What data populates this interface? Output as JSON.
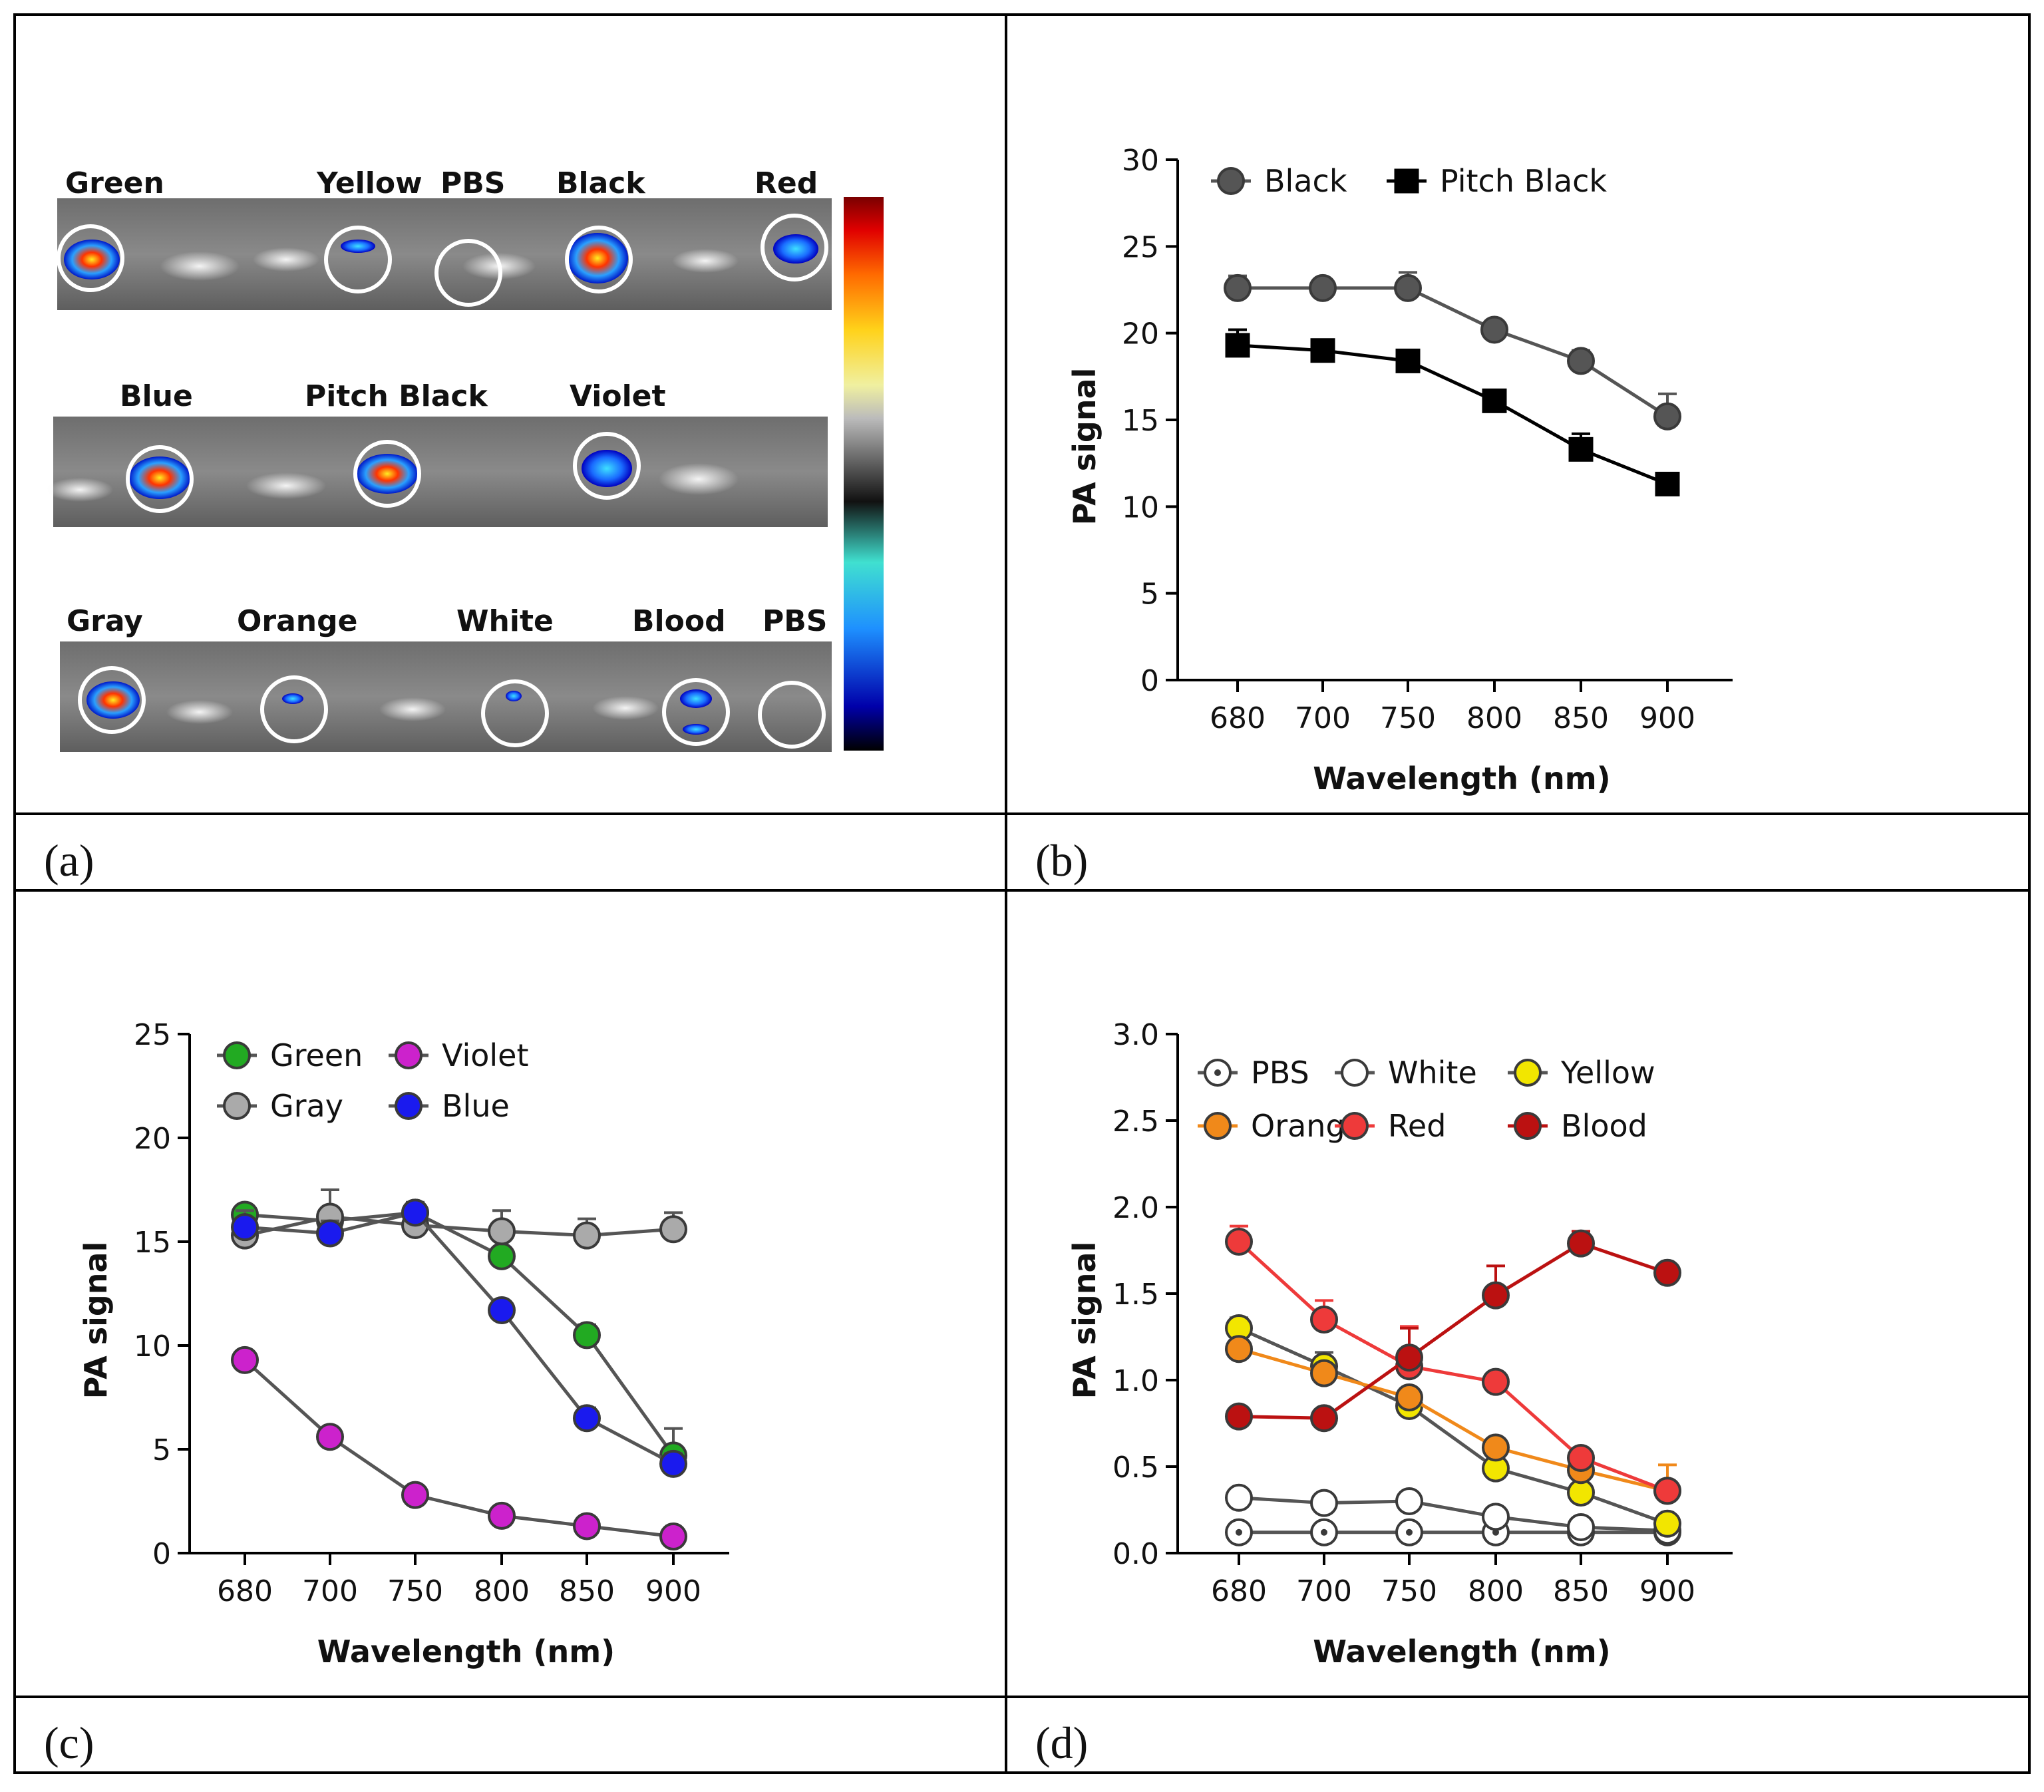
{
  "panels": {
    "a": {
      "letter": "(a)",
      "rows": [
        {
          "labels": [
            "Green",
            "Yellow",
            "PBS",
            "Black",
            "Red"
          ]
        },
        {
          "labels": [
            "Blue",
            "Pitch Black",
            "Violet"
          ]
        },
        {
          "labels": [
            "Gray",
            "Orange",
            "White",
            "Blood",
            "PBS"
          ]
        }
      ]
    },
    "b": {
      "letter": "(b)"
    },
    "c": {
      "letter": "(c)"
    },
    "d": {
      "letter": "(d)"
    }
  },
  "chart_data": [
    {
      "id": "b",
      "type": "line",
      "x": [
        "680",
        "700",
        "750",
        "800",
        "850",
        "900"
      ],
      "xlabel": "Wavelength (nm)",
      "ylabel": "PA signal",
      "ylim": [
        0,
        30
      ],
      "yticks": [
        "0",
        "5",
        "10",
        "15",
        "20",
        "25",
        "30"
      ],
      "series": [
        {
          "name": "Black",
          "marker": "circle",
          "fill": "#555555",
          "line": "#555555",
          "values": [
            22.6,
            22.6,
            22.6,
            20.2,
            18.4,
            15.2
          ],
          "err": [
            0.7,
            0.3,
            0.9,
            0.3,
            0.6,
            1.3
          ]
        },
        {
          "name": "Pitch Black",
          "marker": "square",
          "fill": "#000000",
          "line": "#000000",
          "values": [
            19.3,
            19.0,
            18.4,
            16.1,
            13.3,
            11.3
          ],
          "err": [
            0.9,
            0.5,
            0.3,
            0.6,
            0.9,
            0.3
          ]
        }
      ]
    },
    {
      "id": "c",
      "type": "line",
      "x": [
        "680",
        "700",
        "750",
        "800",
        "850",
        "900"
      ],
      "xlabel": "Wavelength (nm)",
      "ylabel": "PA signal",
      "ylim": [
        0,
        25
      ],
      "yticks": [
        "0",
        "5",
        "10",
        "15",
        "20",
        "25"
      ],
      "series": [
        {
          "name": "Green",
          "marker": "circle",
          "fill": "#22aa22",
          "line": "#555555",
          "values": [
            16.3,
            16.0,
            16.4,
            14.3,
            10.5,
            4.7
          ],
          "err": [
            0.3,
            0.5,
            0.3,
            0.4,
            0.5,
            1.3
          ]
        },
        {
          "name": "Violet",
          "marker": "circle",
          "fill": "#cc22cc",
          "line": "#555555",
          "values": [
            9.3,
            5.6,
            2.8,
            1.8,
            1.3,
            0.8
          ],
          "err": [
            0.2,
            0.4,
            0.2,
            0.2,
            0.2,
            0.2
          ]
        },
        {
          "name": "Gray",
          "marker": "circle",
          "fill": "#aaaaaa",
          "line": "#555555",
          "values": [
            15.3,
            16.2,
            15.8,
            15.5,
            15.3,
            15.6
          ],
          "err": [
            1.2,
            1.3,
            1.1,
            1.0,
            0.8,
            0.8
          ]
        },
        {
          "name": "Blue",
          "marker": "circle",
          "fill": "#1a1aee",
          "line": "#555555",
          "values": [
            15.7,
            15.4,
            16.4,
            11.7,
            6.5,
            4.3
          ],
          "err": [
            0.3,
            0.6,
            0.3,
            0.3,
            0.5,
            0.5
          ]
        }
      ]
    },
    {
      "id": "d",
      "type": "line",
      "x": [
        "680",
        "700",
        "750",
        "800",
        "850",
        "900"
      ],
      "xlabel": "Wavelength (nm)",
      "ylabel": "PA signal",
      "ylim": [
        0,
        3.0
      ],
      "yticks": [
        "0.0",
        "0.5",
        "1.0",
        "1.5",
        "2.0",
        "2.5",
        "3.0"
      ],
      "series": [
        {
          "name": "PBS",
          "marker": "circle-dot",
          "fill": "#ffffff",
          "line": "#555555",
          "values": [
            0.12,
            0.12,
            0.12,
            0.12,
            0.12,
            0.12
          ],
          "err": [
            0.01,
            0.01,
            0.01,
            0.01,
            0.01,
            0.01
          ]
        },
        {
          "name": "White",
          "marker": "circle",
          "fill": "#ffffff",
          "line": "#555555",
          "values": [
            0.32,
            0.29,
            0.3,
            0.21,
            0.15,
            0.13
          ],
          "err": [
            0.02,
            0.02,
            0.02,
            0.02,
            0.02,
            0.02
          ]
        },
        {
          "name": "Yellow",
          "marker": "circle",
          "fill": "#f2e600",
          "line": "#555555",
          "values": [
            1.3,
            1.08,
            0.85,
            0.49,
            0.35,
            0.17
          ],
          "err": [
            0.06,
            0.08,
            0.05,
            0.03,
            0.03,
            0.02
          ]
        },
        {
          "name": "Orange",
          "marker": "circle",
          "fill": "#f0891a",
          "line": "#f0891a",
          "values": [
            1.18,
            1.04,
            0.9,
            0.61,
            0.48,
            0.36
          ],
          "err": [
            0.04,
            0.04,
            0.04,
            0.03,
            0.04,
            0.15
          ]
        },
        {
          "name": "Red",
          "marker": "circle",
          "fill": "#ee3a3a",
          "line": "#ee3a3a",
          "values": [
            1.8,
            1.35,
            1.08,
            0.99,
            0.55,
            0.36
          ],
          "err": [
            0.09,
            0.11,
            0.23,
            0.03,
            0.04,
            0.03
          ]
        },
        {
          "name": "Blood",
          "marker": "circle",
          "fill": "#bb1111",
          "line": "#bb1111",
          "values": [
            0.79,
            0.78,
            1.13,
            1.49,
            1.79,
            1.62
          ],
          "err": [
            0.02,
            0.02,
            0.17,
            0.17,
            0.07,
            0.02
          ]
        }
      ]
    }
  ]
}
